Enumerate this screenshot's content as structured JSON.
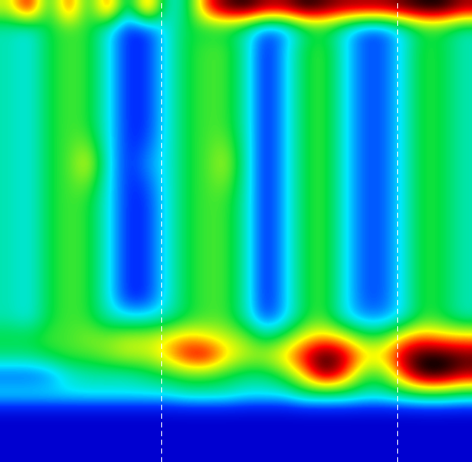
{
  "chart_data": {
    "type": "heatmap",
    "cells": [
      [
        6,
        9,
        4,
        8.5,
        4,
        8.5,
        3,
        8.5,
        3,
        4,
        8,
        9.5,
        10,
        9,
        9,
        10,
        9.5,
        9,
        9,
        9,
        9.5,
        10,
        10,
        9
      ],
      [
        3.5,
        3,
        4.5,
        5,
        4.8,
        3,
        1,
        1.2,
        3,
        4.5,
        4.5,
        4.5,
        3.5,
        1.5,
        2,
        4,
        4.5,
        3,
        1.5,
        1.5,
        3,
        4.5,
        4.5,
        3.5
      ],
      [
        3.5,
        3,
        4.5,
        5,
        4.8,
        3,
        1,
        1.2,
        3,
        4.5,
        5,
        5,
        3.5,
        0.8,
        2.5,
        4.5,
        5,
        3,
        1.5,
        1.5,
        3,
        4.8,
        4.5,
        3.5
      ],
      [
        3.5,
        3,
        4.5,
        5,
        4.8,
        3,
        1,
        1.2,
        3,
        4.5,
        5,
        5,
        3.5,
        0.8,
        2.5,
        4.5,
        5,
        3,
        1.5,
        1.5,
        3,
        4.8,
        4.5,
        3.5
      ],
      [
        3.5,
        3,
        4.5,
        5,
        4.8,
        3,
        1,
        1.2,
        3,
        4.5,
        5,
        5,
        3.5,
        0.8,
        2.5,
        4.5,
        5,
        3,
        1.5,
        1.5,
        3,
        4.8,
        4.5,
        3.5
      ],
      [
        3.5,
        3,
        4.5,
        5,
        4.8,
        3,
        1,
        1.2,
        3,
        4.5,
        5,
        5,
        3.5,
        0.8,
        2.5,
        4.5,
        5,
        3,
        1.5,
        1.5,
        3,
        4.8,
        4.5,
        3.5
      ],
      [
        3.5,
        3,
        4.5,
        5,
        4.8,
        3,
        1,
        1.2,
        3,
        4.5,
        5,
        5,
        3.5,
        0.8,
        2.5,
        4.5,
        5,
        3,
        1.5,
        1.5,
        3,
        4.8,
        4.5,
        3.5
      ],
      [
        3.5,
        3,
        4.5,
        5,
        5.5,
        3,
        1,
        1.5,
        3,
        4.5,
        5,
        5.5,
        3.5,
        0.8,
        2.5,
        4.5,
        5,
        3,
        1.5,
        1.5,
        3,
        4.8,
        4.5,
        3.5
      ],
      [
        3.5,
        3,
        4.5,
        5,
        6.5,
        3,
        1,
        2,
        3,
        4.5,
        5,
        6,
        3.5,
        0.8,
        2.5,
        4.5,
        5,
        3,
        1.5,
        1.5,
        3,
        4.8,
        4.5,
        3.5
      ],
      [
        3.5,
        3,
        4.5,
        5,
        5.5,
        3,
        1,
        1.5,
        3,
        4.5,
        5,
        5.5,
        3.5,
        0.8,
        2.5,
        4.5,
        5,
        3,
        1.5,
        1.5,
        3,
        4.8,
        4.5,
        3.5
      ],
      [
        3.5,
        3,
        4.5,
        5,
        4.8,
        3,
        1,
        1.2,
        3,
        4.5,
        5,
        5,
        3.5,
        0.8,
        2.5,
        4.5,
        5,
        3,
        1.5,
        1.5,
        3,
        4.8,
        4.5,
        3.5
      ],
      [
        3.5,
        3,
        4.5,
        5,
        4.8,
        3,
        1,
        1.2,
        3,
        4.5,
        5,
        5,
        3.5,
        0.8,
        2.5,
        4.5,
        5,
        3,
        1.5,
        1.5,
        3,
        4.8,
        4.5,
        3.5
      ],
      [
        3.5,
        3,
        4.5,
        5,
        4.8,
        3,
        1,
        1.2,
        3,
        4.5,
        5,
        5,
        3.5,
        0.8,
        2.5,
        4.5,
        5,
        3,
        1.5,
        1.5,
        3,
        4.8,
        4.5,
        3.5
      ],
      [
        3.5,
        3,
        4.5,
        5,
        4.8,
        3,
        1,
        1.2,
        3,
        4.5,
        5,
        5,
        3.5,
        0.8,
        2.5,
        4.5,
        5,
        3,
        1.5,
        1.5,
        3,
        4.8,
        4.5,
        3.5
      ],
      [
        3.5,
        3,
        4.5,
        5,
        4.8,
        3,
        1,
        1.2,
        3,
        4.5,
        5,
        5,
        3.5,
        0.8,
        2.5,
        4.5,
        5,
        3,
        1.5,
        1.5,
        3,
        4.8,
        4.5,
        3.5
      ],
      [
        3.5,
        3,
        4.5,
        5,
        4.8,
        3,
        1,
        1.2,
        3,
        4.5,
        5,
        5,
        3.5,
        0.8,
        2.5,
        4.5,
        5,
        3,
        1.5,
        1.5,
        3,
        4.8,
        4.5,
        3.5
      ],
      [
        3.5,
        3,
        4.5,
        5,
        4.8,
        3.5,
        3,
        3,
        3.5,
        4.5,
        5,
        5,
        3.5,
        1.2,
        2.5,
        4.5,
        5,
        3,
        2,
        2,
        3,
        4.8,
        4.5,
        3.5
      ],
      [
        4.5,
        4.5,
        5,
        5,
        5.5,
        5.5,
        6,
        6,
        6.5,
        7,
        6.5,
        6,
        5.5,
        4,
        5,
        6.5,
        7,
        6.5,
        5,
        5,
        7,
        7.5,
        7,
        7
      ],
      [
        4,
        4,
        4.5,
        5,
        5,
        5.5,
        6,
        6,
        7,
        8.5,
        8.8,
        7,
        6,
        6,
        7,
        8.5,
        10,
        9,
        7,
        7,
        9,
        10,
        10,
        9.5
      ],
      [
        1.5,
        1.5,
        1.8,
        3,
        3.5,
        3.5,
        3.5,
        4,
        4.5,
        5,
        5,
        4.5,
        4,
        4,
        5,
        7,
        9.5,
        8,
        5,
        5,
        8,
        10,
        10,
        9
      ],
      [
        3,
        3,
        3,
        3,
        3,
        3,
        3,
        3,
        3,
        3.5,
        3.5,
        3.5,
        3,
        3,
        3,
        4,
        4,
        4,
        3.5,
        3.5,
        4,
        4.5,
        4.5,
        4
      ],
      [
        0,
        0,
        0,
        0,
        0,
        0,
        0,
        0,
        0,
        0,
        0,
        0,
        0,
        0,
        0,
        0,
        0,
        0,
        0,
        0,
        0,
        0,
        0,
        0
      ],
      [
        0,
        0,
        0,
        0,
        0,
        0,
        0,
        0,
        0,
        0,
        0,
        0,
        0,
        0,
        0,
        0,
        0,
        0,
        0,
        0,
        0,
        0,
        0,
        0
      ],
      [
        0,
        0,
        0,
        0,
        0,
        0,
        0,
        0,
        0,
        0,
        0,
        0,
        0,
        0,
        0,
        0,
        0,
        0,
        0,
        0,
        0,
        0,
        0,
        0
      ]
    ],
    "color_range": [
      0,
      10
    ],
    "vlines": [
      7.7,
      19.7
    ],
    "tick_labels": false
  }
}
